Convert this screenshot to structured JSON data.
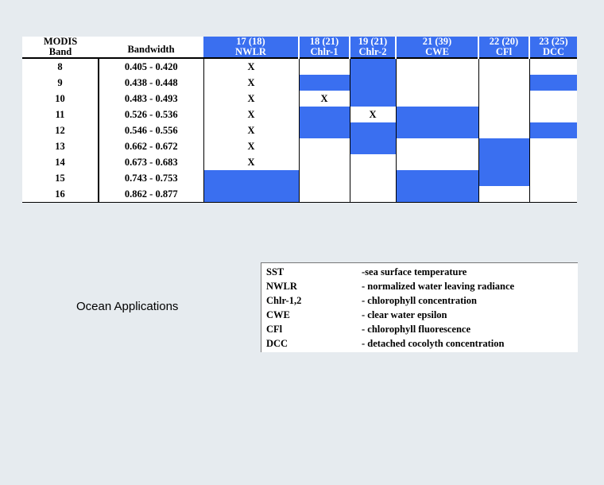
{
  "table": {
    "header": {
      "band_line1": "MODIS",
      "band_line2": "Band",
      "bandwidth": "Bandwidth",
      "columns": [
        {
          "num": "17 (18)",
          "abbr": "NWLR"
        },
        {
          "num": "18 (21)",
          "abbr": "Chlr-1"
        },
        {
          "num": "19 (21)",
          "abbr": "Chlr-2"
        },
        {
          "num": "21 (39)",
          "abbr": "CWE"
        },
        {
          "num": "22 (20)",
          "abbr": "CFl"
        },
        {
          "num": "23 (25)",
          "abbr": "DCC"
        }
      ]
    },
    "rows": [
      {
        "band": "8",
        "bandwidth": "0.405 - 0.420",
        "cells": [
          "X",
          "",
          "",
          "",
          "",
          ""
        ]
      },
      {
        "band": "9",
        "bandwidth": "0.438 - 0.448",
        "cells": [
          "X",
          "",
          "",
          "",
          "",
          ""
        ]
      },
      {
        "band": "10",
        "bandwidth": "0.483 - 0.493",
        "cells": [
          "X",
          "X",
          "",
          "",
          "",
          ""
        ]
      },
      {
        "band": "11",
        "bandwidth": "0.526 - 0.536",
        "cells": [
          "X",
          "",
          "X",
          "",
          "",
          ""
        ]
      },
      {
        "band": "12",
        "bandwidth": "0.546 - 0.556",
        "cells": [
          "X",
          "",
          "",
          "",
          "",
          ""
        ]
      },
      {
        "band": "13",
        "bandwidth": "0.662 - 0.672",
        "cells": [
          "X",
          "",
          "",
          "",
          "",
          ""
        ]
      },
      {
        "band": "14",
        "bandwidth": "0.673 - 0.683",
        "cells": [
          "X",
          "",
          "",
          "",
          "",
          ""
        ]
      },
      {
        "band": "15",
        "bandwidth": "0.743 - 0.753",
        "cells": [
          "",
          "",
          "",
          "",
          "",
          ""
        ]
      },
      {
        "band": "16",
        "bandwidth": "0.862 - 0.877",
        "cells": [
          "",
          "",
          "",
          "",
          "",
          ""
        ]
      }
    ],
    "highlight": [
      [
        false,
        false,
        true,
        false,
        false,
        false
      ],
      [
        false,
        true,
        true,
        false,
        false,
        true
      ],
      [
        false,
        false,
        true,
        false,
        false,
        false
      ],
      [
        false,
        true,
        false,
        true,
        false,
        false
      ],
      [
        false,
        true,
        true,
        true,
        false,
        true
      ],
      [
        false,
        false,
        true,
        false,
        true,
        false
      ],
      [
        false,
        false,
        false,
        false,
        true,
        false
      ],
      [
        true,
        false,
        false,
        true,
        true,
        false
      ],
      [
        true,
        false,
        false,
        true,
        false,
        false
      ]
    ],
    "highlight_color": "#3a6ff0"
  },
  "app_label": "Ocean Applications",
  "legend": [
    {
      "abbr": "SST",
      "desc": "-sea surface temperature"
    },
    {
      "abbr": "NWLR",
      "desc": "- normalized water leaving radiance"
    },
    {
      "abbr": "Chlr-1,2",
      "desc": "- chlorophyll concentration"
    },
    {
      "abbr": "CWE",
      "desc": "- clear water epsilon"
    },
    {
      "abbr": "CFl",
      "desc": "- chlorophyll fluorescence"
    },
    {
      "abbr": "DCC",
      "desc": "- detached cocolyth concentration"
    }
  ]
}
